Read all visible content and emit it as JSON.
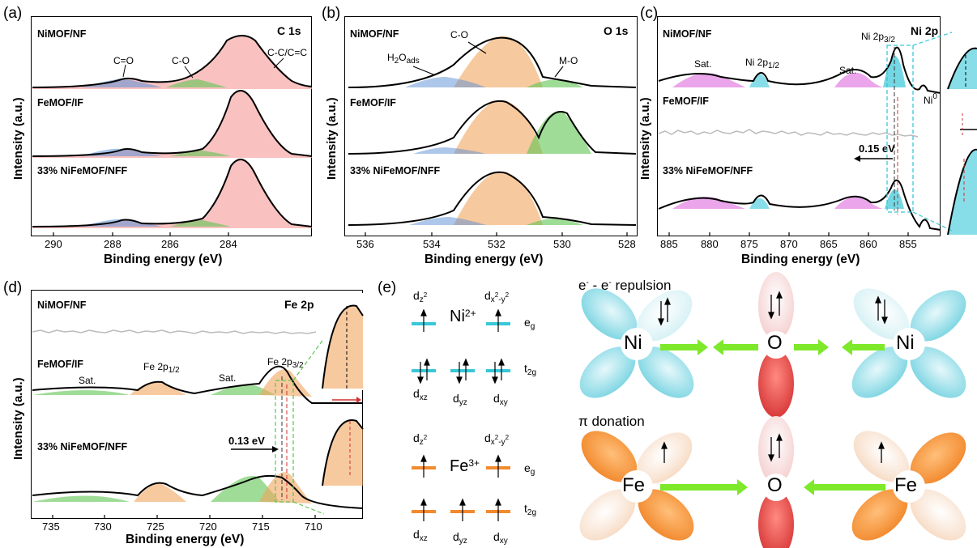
{
  "panels": {
    "a": {
      "label": "(a)",
      "title": "C 1s",
      "samples": [
        "NiMOF/NF",
        "FeMOF/IF",
        "33% NiFeMOF/NFF"
      ],
      "peaks": [
        "C=O",
        "C-O",
        "C-C/C=C"
      ],
      "xlabel": "Binding energy (eV)",
      "ylabel": "Intensity (a.u.)",
      "xticks": [
        "290",
        "288",
        "286",
        "284"
      ]
    },
    "b": {
      "label": "(b)",
      "title": "O 1s",
      "samples": [
        "NiMOF/NF",
        "FeMOF/IF",
        "33% NiFeMOF/NFF"
      ],
      "peaks": [
        "H2Oads",
        "C-O",
        "M-O"
      ],
      "xlabel": "Binding energy (eV)",
      "ylabel": "Intensity (a.u.)",
      "xticks": [
        "536",
        "534",
        "532",
        "530",
        "528"
      ]
    },
    "c": {
      "label": "(c)",
      "title": "Ni 2p",
      "samples": [
        "NiMOF/NF",
        "FeMOF/IF",
        "33% NiFeMOF/NFF"
      ],
      "peaks": [
        "Sat.",
        "Ni 2p1/2",
        "Sat.",
        "Ni 2p3/2",
        "Ni0"
      ],
      "shift": "0.15 eV",
      "xlabel": "Binding energy (eV)",
      "ylabel": "Intensity (a.u.)",
      "xticks": [
        "885",
        "880",
        "875",
        "870",
        "865",
        "860",
        "855"
      ]
    },
    "d": {
      "label": "(d)",
      "title": "Fe 2p",
      "samples": [
        "NiMOF/NF",
        "FeMOF/IF",
        "33% NiFeMOF/NFF"
      ],
      "peaks": [
        "Sat.",
        "Fe 2p1/2",
        "Sat.",
        "Fe 2p3/2"
      ],
      "shift": "0.13 eV",
      "xlabel": "Binding energy (eV)",
      "ylabel": "Intensity (a.u.)",
      "xticks": [
        "735",
        "730",
        "725",
        "720",
        "715",
        "710"
      ]
    },
    "e": {
      "label": "(e)",
      "ni_ion": "Ni2+",
      "fe_ion": "Fe3+",
      "eg": "eg",
      "t2g": "t2g",
      "orbitals_top": [
        "dz2",
        "dx2-y2"
      ],
      "orbitals_bottom": [
        "dxz",
        "dyz",
        "dxy"
      ],
      "repulsion": "e- - e- repulsion",
      "donation": "π donation",
      "atoms": {
        "ni": "Ni",
        "o": "O",
        "fe": "Fe"
      }
    }
  },
  "colors": {
    "blue": "#5b8fd6",
    "green": "#5fc452",
    "red": "#e8524f",
    "orange": "#f2a55e",
    "cyan": "#38c8d8",
    "magenta": "#d84bd8",
    "arrow": "#7ee82a",
    "orb_cyan": "#6fd0de",
    "orb_orange": "#f28a2e",
    "orb_red": "#e8484a"
  }
}
